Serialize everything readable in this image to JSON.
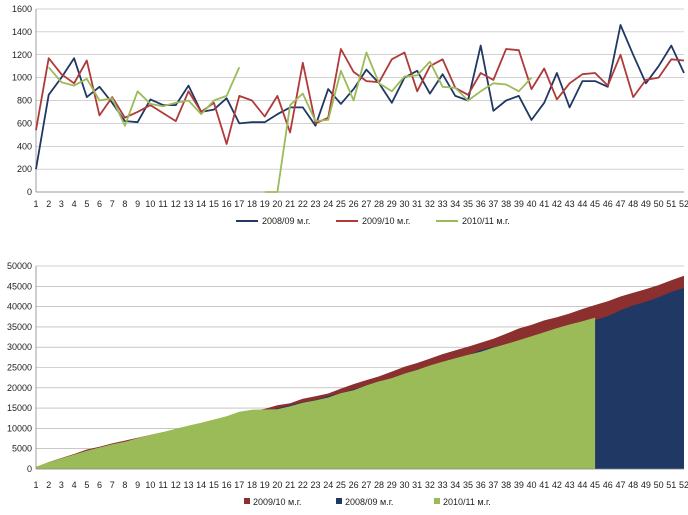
{
  "chart_data": [
    {
      "type": "line",
      "x": [
        1,
        2,
        3,
        4,
        5,
        6,
        7,
        8,
        9,
        10,
        11,
        12,
        13,
        14,
        15,
        16,
        17,
        18,
        19,
        20,
        21,
        22,
        23,
        24,
        25,
        26,
        27,
        28,
        29,
        30,
        31,
        32,
        33,
        34,
        35,
        36,
        37,
        38,
        39,
        40,
        41,
        42,
        43,
        44,
        45,
        46,
        47,
        48,
        49,
        50,
        51,
        52
      ],
      "ylim": [
        0,
        1600
      ],
      "yticks": [
        0,
        200,
        400,
        600,
        800,
        1000,
        1200,
        1400,
        1600
      ],
      "grid": true,
      "legend_position": "bottom",
      "series": [
        {
          "name": "2008/09 м.г.",
          "color": "#1f3864",
          "values": [
            200,
            850,
            1000,
            1170,
            830,
            920,
            780,
            620,
            610,
            810,
            760,
            760,
            930,
            700,
            720,
            820,
            600,
            610,
            610,
            680,
            740,
            740,
            580,
            900,
            770,
            900,
            1070,
            950,
            780,
            1000,
            1060,
            860,
            1030,
            840,
            800,
            1280,
            710,
            800,
            840,
            630,
            780,
            1040,
            740,
            970,
            970,
            920,
            1460,
            1200,
            950,
            1100,
            1280,
            1040
          ]
        },
        {
          "name": "2009/10 м.г.",
          "color": "#b03a3a",
          "values": [
            540,
            1170,
            1030,
            950,
            1150,
            670,
            830,
            650,
            700,
            760,
            690,
            620,
            880,
            700,
            780,
            420,
            840,
            800,
            660,
            840,
            520,
            1130,
            600,
            650,
            1250,
            1050,
            970,
            960,
            1160,
            1220,
            880,
            1100,
            1160,
            910,
            850,
            1040,
            980,
            1250,
            1240,
            900,
            1080,
            810,
            950,
            1030,
            1040,
            930,
            1200,
            830,
            980,
            1000,
            1160,
            1150
          ]
        },
        {
          "name": "2010/11 м.г.",
          "color": "#9bbb59",
          "values": [
            null,
            1090,
            960,
            930,
            990,
            800,
            820,
            580,
            880,
            770,
            750,
            780,
            800,
            680,
            800,
            840,
            1090,
            null,
            0,
            0,
            760,
            860,
            620,
            630,
            1060,
            800,
            1220,
            950,
            880,
            1010,
            1020,
            1140,
            920,
            910,
            800,
            880,
            950,
            940,
            880,
            1000,
            null,
            null,
            null,
            null,
            null,
            null,
            null,
            null,
            null,
            null,
            null,
            null
          ]
        }
      ]
    },
    {
      "type": "area",
      "x": [
        1,
        2,
        3,
        4,
        5,
        6,
        7,
        8,
        9,
        10,
        11,
        12,
        13,
        14,
        15,
        16,
        17,
        18,
        19,
        20,
        21,
        22,
        23,
        24,
        25,
        26,
        27,
        28,
        29,
        30,
        31,
        32,
        33,
        34,
        35,
        36,
        37,
        38,
        39,
        40,
        41,
        42,
        43,
        44,
        45,
        46,
        47,
        48,
        49,
        50,
        51,
        52
      ],
      "ylim": [
        0,
        50000
      ],
      "yticks": [
        0,
        5000,
        10000,
        15000,
        20000,
        25000,
        30000,
        35000,
        40000,
        45000,
        50000
      ],
      "grid": true,
      "legend_position": "bottom",
      "series": [
        {
          "name": "2009/10 м.г.",
          "color": "#8b2f2f",
          "values": [
            500,
            1700,
            2700,
            3700,
            4800,
            5500,
            6300,
            7000,
            7700,
            8400,
            9100,
            9700,
            10600,
            11300,
            12100,
            12500,
            13400,
            14200,
            14800,
            15700,
            16200,
            17300,
            17900,
            18600,
            19800,
            20900,
            21900,
            22800,
            24000,
            25200,
            26100,
            27200,
            28300,
            29200,
            30100,
            31100,
            32100,
            33300,
            34600,
            35500,
            36600,
            37400,
            38300,
            39400,
            40400,
            41300,
            42500,
            43400,
            44300,
            45300,
            46500,
            47600
          ]
        },
        {
          "name": "2008/09 м.г.",
          "color": "#1f3864",
          "values": [
            200,
            1050,
            2000,
            3200,
            4000,
            4900,
            5700,
            6300,
            6900,
            7700,
            8500,
            9200,
            10200,
            10900,
            11600,
            12400,
            13000,
            13600,
            14200,
            14900,
            15700,
            16400,
            17000,
            17900,
            18700,
            19600,
            20600,
            21600,
            22400,
            23400,
            24500,
            25300,
            26300,
            27200,
            28000,
            29300,
            30000,
            30800,
            31600,
            32300,
            33000,
            34000,
            34800,
            35800,
            36700,
            37600,
            39100,
            40300,
            41200,
            42300,
            43600,
            44600
          ]
        },
        {
          "name": "2010/11 м.г.",
          "color": "#9bbb59",
          "values": [
            550,
            1650,
            2600,
            3550,
            4500,
            5300,
            6100,
            6700,
            7600,
            8400,
            9100,
            9900,
            10700,
            11400,
            12200,
            13000,
            14100,
            14600,
            14650,
            14700,
            15450,
            16300,
            16900,
            17600,
            18700,
            19400,
            20600,
            21600,
            22400,
            23500,
            24400,
            25500,
            26400,
            27300,
            28100,
            28900,
            29900,
            30800,
            31700,
            32700,
            33700,
            34700,
            35600,
            36400,
            37300,
            null,
            null,
            null,
            null,
            null,
            null,
            null
          ]
        }
      ]
    }
  ]
}
